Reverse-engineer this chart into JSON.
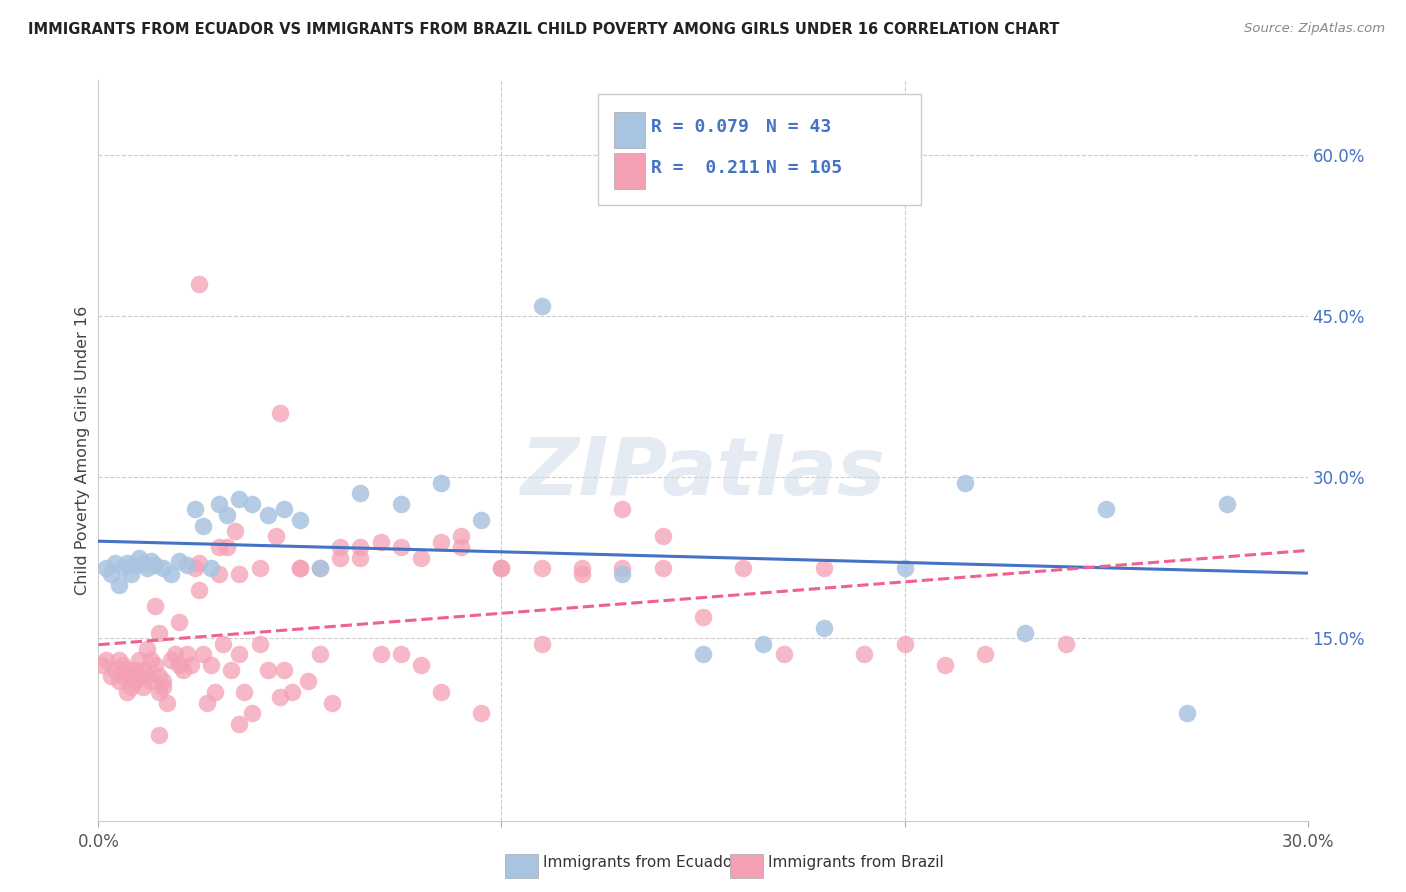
{
  "title": "IMMIGRANTS FROM ECUADOR VS IMMIGRANTS FROM BRAZIL CHILD POVERTY AMONG GIRLS UNDER 16 CORRELATION CHART",
  "source": "Source: ZipAtlas.com",
  "ylabel": "Child Poverty Among Girls Under 16",
  "ytick_labels": [
    "15.0%",
    "30.0%",
    "45.0%",
    "60.0%"
  ],
  "ytick_values": [
    0.15,
    0.3,
    0.45,
    0.6
  ],
  "xlim": [
    0.0,
    0.3
  ],
  "ylim": [
    -0.02,
    0.67
  ],
  "plot_ylim": [
    -0.02,
    0.67
  ],
  "watermark": "ZIPatlas",
  "legend_ecuador_label": "Immigrants from Ecuador",
  "legend_brazil_label": "Immigrants from Brazil",
  "R_ecuador": "0.079",
  "N_ecuador": "43",
  "R_brazil": "0.211",
  "N_brazil": "105",
  "color_ecuador_fill": "#a8c4e0",
  "color_brazil_fill": "#f4a0b4",
  "color_line_ecuador": "#4472c4",
  "color_line_brazil": "#f06090",
  "color_blue_text": "#4472c4",
  "ecuador_x": [
    0.002,
    0.003,
    0.004,
    0.005,
    0.006,
    0.007,
    0.008,
    0.009,
    0.01,
    0.011,
    0.012,
    0.013,
    0.014,
    0.016,
    0.018,
    0.02,
    0.022,
    0.024,
    0.026,
    0.028,
    0.03,
    0.032,
    0.035,
    0.038,
    0.042,
    0.046,
    0.05,
    0.055,
    0.065,
    0.075,
    0.085,
    0.095,
    0.11,
    0.13,
    0.15,
    0.165,
    0.18,
    0.2,
    0.215,
    0.23,
    0.25,
    0.27,
    0.28
  ],
  "ecuador_y": [
    0.215,
    0.21,
    0.22,
    0.2,
    0.215,
    0.22,
    0.21,
    0.218,
    0.225,
    0.22,
    0.215,
    0.222,
    0.218,
    0.215,
    0.21,
    0.222,
    0.218,
    0.27,
    0.255,
    0.215,
    0.275,
    0.265,
    0.28,
    0.275,
    0.265,
    0.27,
    0.26,
    0.215,
    0.285,
    0.275,
    0.295,
    0.26,
    0.46,
    0.21,
    0.135,
    0.145,
    0.16,
    0.215,
    0.295,
    0.155,
    0.27,
    0.08,
    0.275
  ],
  "brazil_x": [
    0.001,
    0.002,
    0.003,
    0.004,
    0.005,
    0.005,
    0.006,
    0.006,
    0.007,
    0.007,
    0.008,
    0.008,
    0.009,
    0.009,
    0.01,
    0.01,
    0.011,
    0.011,
    0.012,
    0.012,
    0.013,
    0.013,
    0.014,
    0.014,
    0.015,
    0.015,
    0.016,
    0.016,
    0.017,
    0.018,
    0.019,
    0.02,
    0.021,
    0.022,
    0.023,
    0.024,
    0.025,
    0.026,
    0.027,
    0.028,
    0.029,
    0.03,
    0.031,
    0.032,
    0.033,
    0.034,
    0.035,
    0.036,
    0.038,
    0.04,
    0.042,
    0.044,
    0.046,
    0.048,
    0.05,
    0.052,
    0.055,
    0.058,
    0.06,
    0.065,
    0.07,
    0.075,
    0.08,
    0.085,
    0.09,
    0.095,
    0.1,
    0.11,
    0.12,
    0.13,
    0.14,
    0.15,
    0.16,
    0.17,
    0.18,
    0.19,
    0.2,
    0.21,
    0.22,
    0.24,
    0.015,
    0.02,
    0.025,
    0.03,
    0.035,
    0.04,
    0.045,
    0.05,
    0.055,
    0.06,
    0.065,
    0.07,
    0.075,
    0.08,
    0.085,
    0.09,
    0.1,
    0.11,
    0.12,
    0.13,
    0.14,
    0.015,
    0.025,
    0.035,
    0.045
  ],
  "brazil_y": [
    0.125,
    0.13,
    0.115,
    0.12,
    0.13,
    0.11,
    0.115,
    0.125,
    0.1,
    0.12,
    0.115,
    0.105,
    0.11,
    0.12,
    0.13,
    0.115,
    0.12,
    0.105,
    0.14,
    0.115,
    0.13,
    0.11,
    0.18,
    0.125,
    0.1,
    0.115,
    0.105,
    0.11,
    0.09,
    0.13,
    0.135,
    0.125,
    0.12,
    0.135,
    0.125,
    0.215,
    0.22,
    0.135,
    0.09,
    0.125,
    0.1,
    0.235,
    0.145,
    0.235,
    0.12,
    0.25,
    0.135,
    0.1,
    0.08,
    0.145,
    0.12,
    0.245,
    0.12,
    0.1,
    0.215,
    0.11,
    0.135,
    0.09,
    0.235,
    0.225,
    0.135,
    0.135,
    0.125,
    0.1,
    0.235,
    0.08,
    0.215,
    0.145,
    0.21,
    0.27,
    0.245,
    0.17,
    0.215,
    0.135,
    0.215,
    0.135,
    0.145,
    0.125,
    0.135,
    0.145,
    0.155,
    0.165,
    0.195,
    0.21,
    0.21,
    0.215,
    0.095,
    0.215,
    0.215,
    0.225,
    0.235,
    0.24,
    0.235,
    0.225,
    0.24,
    0.245,
    0.215,
    0.215,
    0.215,
    0.215,
    0.215,
    0.06,
    0.48,
    0.07,
    0.36
  ]
}
